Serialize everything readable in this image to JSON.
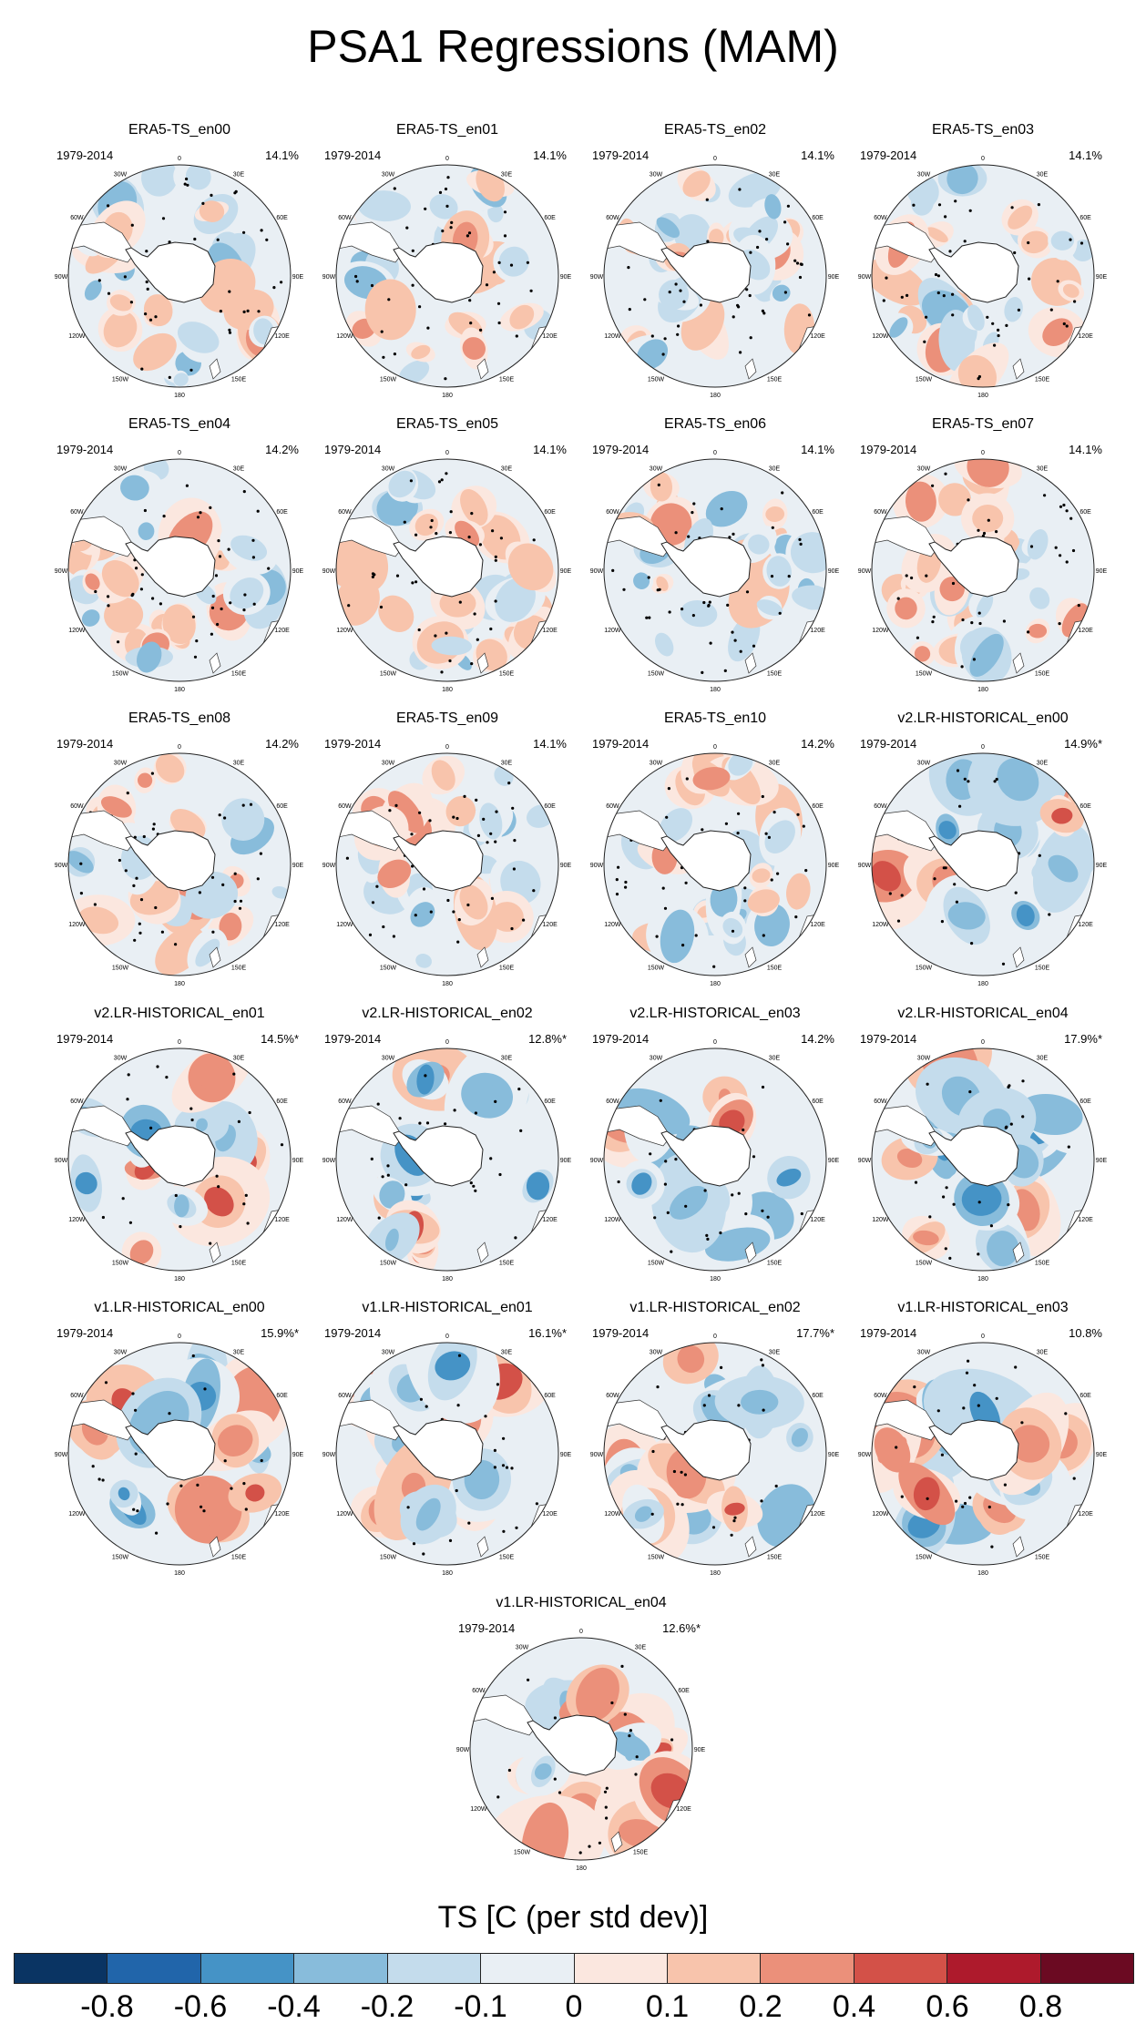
{
  "title": "PSA1 Regressions (MAM)",
  "panels": [
    {
      "title": "ERA5-TS_en00",
      "period": "1979-2014",
      "pct": "14.1%",
      "style": "era",
      "seed": 11
    },
    {
      "title": "ERA5-TS_en01",
      "period": "1979-2014",
      "pct": "14.1%",
      "style": "era",
      "seed": 12
    },
    {
      "title": "ERA5-TS_en02",
      "period": "1979-2014",
      "pct": "14.1%",
      "style": "era",
      "seed": 13
    },
    {
      "title": "ERA5-TS_en03",
      "period": "1979-2014",
      "pct": "14.1%",
      "style": "era",
      "seed": 14
    },
    {
      "title": "ERA5-TS_en04",
      "period": "1979-2014",
      "pct": "14.2%",
      "style": "era",
      "seed": 15
    },
    {
      "title": "ERA5-TS_en05",
      "period": "1979-2014",
      "pct": "14.1%",
      "style": "era",
      "seed": 16
    },
    {
      "title": "ERA5-TS_en06",
      "period": "1979-2014",
      "pct": "14.1%",
      "style": "era",
      "seed": 17
    },
    {
      "title": "ERA5-TS_en07",
      "period": "1979-2014",
      "pct": "14.1%",
      "style": "era",
      "seed": 18
    },
    {
      "title": "ERA5-TS_en08",
      "period": "1979-2014",
      "pct": "14.2%",
      "style": "era",
      "seed": 19
    },
    {
      "title": "ERA5-TS_en09",
      "period": "1979-2014",
      "pct": "14.1%",
      "style": "era",
      "seed": 20
    },
    {
      "title": "ERA5-TS_en10",
      "period": "1979-2014",
      "pct": "14.2%",
      "style": "era",
      "seed": 21
    },
    {
      "title": "v2.LR-HISTORICAL_en00",
      "period": "1979-2014",
      "pct": "14.9%*",
      "style": "model",
      "seed": 31
    },
    {
      "title": "v2.LR-HISTORICAL_en01",
      "period": "1979-2014",
      "pct": "14.5%*",
      "style": "model",
      "seed": 32
    },
    {
      "title": "v2.LR-HISTORICAL_en02",
      "period": "1979-2014",
      "pct": "12.8%*",
      "style": "model",
      "seed": 33
    },
    {
      "title": "v2.LR-HISTORICAL_en03",
      "period": "1979-2014",
      "pct": "14.2%",
      "style": "model",
      "seed": 34
    },
    {
      "title": "v2.LR-HISTORICAL_en04",
      "period": "1979-2014",
      "pct": "17.9%*",
      "style": "model",
      "seed": 35
    },
    {
      "title": "v1.LR-HISTORICAL_en00",
      "period": "1979-2014",
      "pct": "15.9%*",
      "style": "model",
      "seed": 36
    },
    {
      "title": "v1.LR-HISTORICAL_en01",
      "period": "1979-2014",
      "pct": "16.1%*",
      "style": "model",
      "seed": 37
    },
    {
      "title": "v1.LR-HISTORICAL_en02",
      "period": "1979-2014",
      "pct": "17.7%*",
      "style": "model",
      "seed": 38
    },
    {
      "title": "v1.LR-HISTORICAL_en03",
      "period": "1979-2014",
      "pct": "10.8%",
      "style": "model",
      "seed": 39
    },
    {
      "title": "v1.LR-HISTORICAL_en04",
      "period": "1979-2014",
      "pct": "12.6%*",
      "style": "model",
      "seed": 40
    }
  ],
  "lon_labels": [
    "0",
    "30E",
    "60E",
    "90E",
    "120E",
    "150E",
    "180",
    "150W",
    "120W",
    "90W",
    "60W",
    "30W"
  ],
  "colorbar": {
    "title": "TS [C (per std dev)]",
    "colors": [
      "#0a3463",
      "#2165aa",
      "#4593c6",
      "#88bcdb",
      "#c4dcec",
      "#e9eff4",
      "#fbe7df",
      "#f8c4ac",
      "#eb907a",
      "#d35148",
      "#ae1a2c",
      "#6b0a22"
    ],
    "labels": [
      "-0.8",
      "-0.6",
      "-0.4",
      "-0.2",
      "-0.1",
      "0",
      "0.1",
      "0.2",
      "0.4",
      "0.6",
      "0.8"
    ]
  }
}
